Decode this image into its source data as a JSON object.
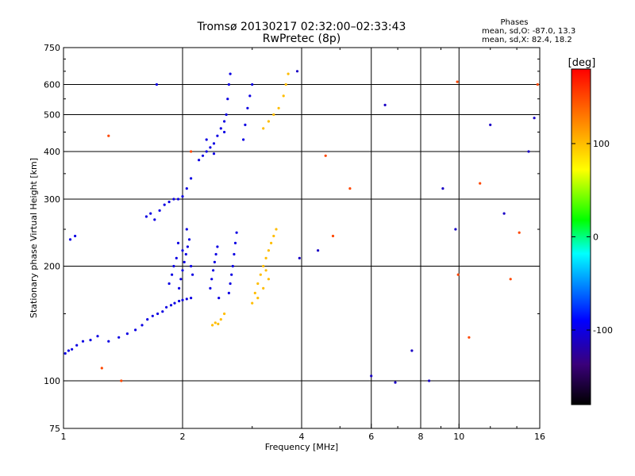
{
  "header": {
    "title": "Tromsø 20130217 02:32:00–02:33:43",
    "subtitle": "RwPretec (8p)"
  },
  "info": {
    "heading": "Phases",
    "line1": "mean, sd,O: -87.0, 13.3",
    "line2": "mean, sd,X:  82.4, 18.2"
  },
  "chart_data": {
    "type": "scatter",
    "title": "Tromsø 20130217 02:32:00–02:33:43",
    "subtitle": "RwPretec (8p)",
    "xlabel": "Frequency [MHz]",
    "ylabel": "Stationary phase Virtual Height [km]",
    "x_scale": "log",
    "y_scale": "log",
    "xlim": [
      1,
      16
    ],
    "ylim": [
      75,
      750
    ],
    "x_ticks": [
      1,
      2,
      4,
      6,
      8,
      10,
      16
    ],
    "x_tick_labels": [
      "1",
      "2",
      "4",
      "6",
      "8",
      "10",
      "16"
    ],
    "x_gridlines": [
      2,
      4,
      6,
      8,
      10
    ],
    "y_ticks": [
      75,
      100,
      200,
      300,
      400,
      500,
      600,
      750
    ],
    "y_tick_labels": [
      "75",
      "100",
      "200",
      "300",
      "400",
      "500",
      "600",
      "750"
    ],
    "y_gridlines": [
      100,
      200,
      300,
      400,
      500,
      600
    ],
    "colorbar": {
      "label": "[deg]",
      "range": [
        -180,
        180
      ],
      "tick_values": [
        100,
        0,
        -100
      ],
      "tick_labels": [
        "100",
        "0",
        "-100"
      ],
      "colormap": [
        "#000000",
        "#3a007a",
        "#0000ff",
        "#00ffff",
        "#00ff00",
        "#ffff00",
        "#ff8000",
        "#ff0000"
      ]
    },
    "series": [
      {
        "points": [
          [
            1.01,
            118
          ],
          [
            1.03,
            120
          ],
          [
            1.05,
            121
          ],
          [
            1.08,
            124
          ],
          [
            1.12,
            127
          ],
          [
            1.17,
            128
          ],
          [
            1.22,
            131
          ],
          [
            1.3,
            127
          ],
          [
            1.38,
            130
          ],
          [
            1.45,
            133
          ],
          [
            1.52,
            136
          ],
          [
            1.58,
            140
          ],
          [
            1.63,
            145
          ],
          [
            1.68,
            148
          ],
          [
            1.73,
            150
          ],
          [
            1.78,
            152
          ],
          [
            1.82,
            156
          ],
          [
            1.87,
            158
          ],
          [
            1.91,
            160
          ],
          [
            1.96,
            162
          ],
          [
            2.0,
            163
          ],
          [
            2.05,
            164
          ],
          [
            2.1,
            165
          ],
          [
            1.85,
            180
          ],
          [
            1.88,
            190
          ],
          [
            1.9,
            200
          ],
          [
            1.93,
            210
          ],
          [
            1.96,
            175
          ],
          [
            1.98,
            185
          ],
          [
            2.0,
            195
          ],
          [
            2.02,
            205
          ],
          [
            2.04,
            215
          ],
          [
            2.06,
            225
          ],
          [
            2.08,
            235
          ],
          [
            2.0,
            220
          ],
          [
            1.95,
            230
          ],
          [
            2.1,
            200
          ],
          [
            2.12,
            190
          ],
          [
            2.05,
            250
          ],
          [
            2.35,
            175
          ],
          [
            2.37,
            185
          ],
          [
            2.39,
            195
          ],
          [
            2.41,
            205
          ],
          [
            2.43,
            215
          ],
          [
            2.45,
            225
          ],
          [
            2.47,
            165
          ],
          [
            2.62,
            170
          ],
          [
            2.64,
            180
          ],
          [
            2.66,
            190
          ],
          [
            2.68,
            200
          ],
          [
            2.7,
            215
          ],
          [
            2.72,
            230
          ],
          [
            2.74,
            245
          ],
          [
            1.62,
            270
          ],
          [
            1.66,
            275
          ],
          [
            1.7,
            265
          ],
          [
            1.75,
            280
          ],
          [
            1.8,
            290
          ],
          [
            1.85,
            295
          ],
          [
            1.9,
            300
          ],
          [
            1.95,
            300
          ],
          [
            2.0,
            305
          ],
          [
            2.05,
            320
          ],
          [
            2.1,
            340
          ],
          [
            2.2,
            380
          ],
          [
            2.25,
            390
          ],
          [
            2.3,
            400
          ],
          [
            2.35,
            410
          ],
          [
            2.4,
            420
          ],
          [
            2.45,
            440
          ],
          [
            2.5,
            460
          ],
          [
            2.55,
            480
          ],
          [
            2.3,
            430
          ],
          [
            2.4,
            395
          ],
          [
            2.55,
            450
          ],
          [
            2.58,
            500
          ],
          [
            2.6,
            550
          ],
          [
            2.62,
            600
          ],
          [
            2.64,
            640
          ],
          [
            2.85,
            430
          ],
          [
            2.88,
            470
          ],
          [
            2.92,
            520
          ],
          [
            2.96,
            560
          ],
          [
            3.0,
            600
          ],
          [
            1.04,
            235
          ],
          [
            1.07,
            240
          ],
          [
            1.72,
            600
          ]
        ],
        "phase_deg": -100
      },
      {
        "points": [
          [
            2.38,
            140
          ],
          [
            2.42,
            142
          ],
          [
            2.46,
            141
          ],
          [
            2.5,
            145
          ],
          [
            2.55,
            150
          ],
          [
            3.0,
            160
          ],
          [
            3.05,
            170
          ],
          [
            3.1,
            180
          ],
          [
            3.15,
            190
          ],
          [
            3.2,
            200
          ],
          [
            3.25,
            210
          ],
          [
            3.3,
            220
          ],
          [
            3.35,
            230
          ],
          [
            3.4,
            240
          ],
          [
            3.45,
            250
          ],
          [
            3.1,
            165
          ],
          [
            3.2,
            175
          ],
          [
            3.3,
            185
          ],
          [
            3.25,
            195
          ],
          [
            3.2,
            460
          ],
          [
            3.3,
            480
          ],
          [
            3.4,
            500
          ],
          [
            3.5,
            520
          ],
          [
            3.6,
            560
          ],
          [
            3.65,
            600
          ],
          [
            3.7,
            640
          ]
        ],
        "phase_deg": 100
      },
      {
        "points": [
          [
            1.3,
            440
          ],
          [
            1.25,
            108
          ],
          [
            1.4,
            100
          ],
          [
            2.1,
            400
          ],
          [
            4.8,
            240
          ],
          [
            5.3,
            320
          ],
          [
            9.9,
            610
          ],
          [
            9.95,
            190
          ],
          [
            10.6,
            130
          ],
          [
            11.3,
            330
          ],
          [
            13.5,
            185
          ],
          [
            14.2,
            245
          ],
          [
            15.8,
            600
          ],
          [
            4.6,
            390
          ]
        ],
        "phase_deg": 150
      },
      {
        "points": [
          [
            6.5,
            530
          ],
          [
            7.6,
            120
          ],
          [
            9.1,
            320
          ],
          [
            9.8,
            250
          ],
          [
            12.0,
            470
          ],
          [
            13.0,
            275
          ],
          [
            15.0,
            400
          ],
          [
            15.5,
            490
          ],
          [
            6.0,
            103
          ],
          [
            6.9,
            99
          ],
          [
            8.4,
            100
          ],
          [
            3.9,
            650
          ],
          [
            3.95,
            210
          ],
          [
            4.4,
            220
          ]
        ],
        "phase_deg": -110
      }
    ]
  }
}
